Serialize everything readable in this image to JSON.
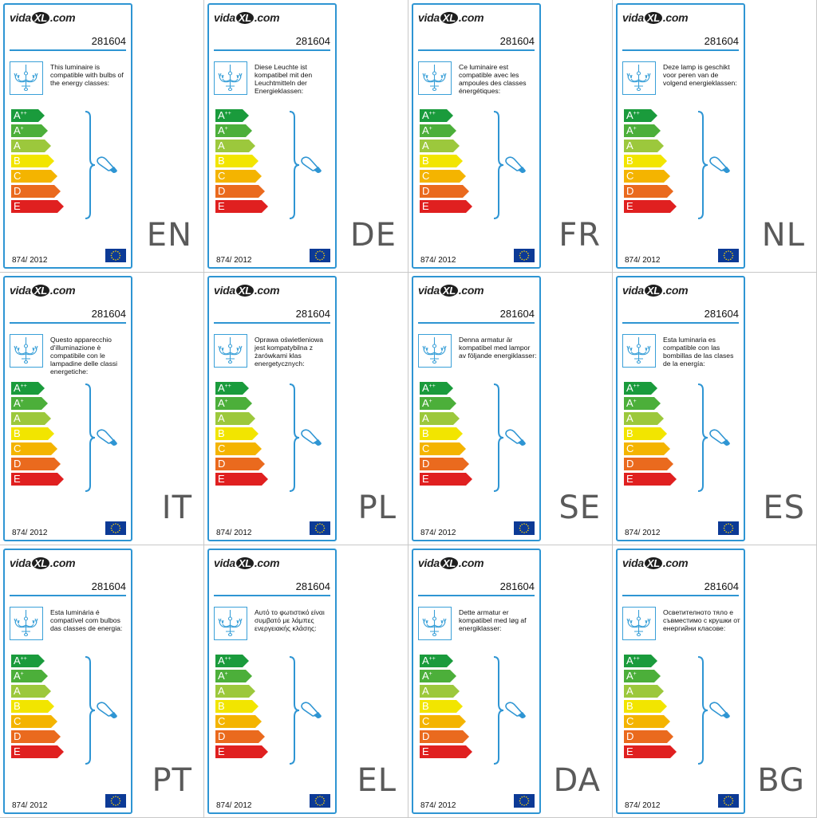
{
  "label_common": {
    "logo_left": "vida",
    "logo_mid": "XL",
    "logo_right": ".com",
    "product_code": "281604",
    "regulation": "874/ 2012",
    "energy_classes": [
      {
        "letter": "A",
        "sup": "++",
        "color": "#1a9b3c"
      },
      {
        "letter": "A",
        "sup": "+",
        "color": "#4caf3a"
      },
      {
        "letter": "A",
        "sup": "",
        "color": "#9cc83c"
      },
      {
        "letter": "B",
        "sup": "",
        "color": "#f2e500"
      },
      {
        "letter": "C",
        "sup": "",
        "color": "#f4b400"
      },
      {
        "letter": "D",
        "sup": "",
        "color": "#ea6a1e"
      },
      {
        "letter": "E",
        "sup": "",
        "color": "#e02020"
      }
    ],
    "accent_color": "#2e95d3",
    "icons": [
      "chandelier-icon",
      "bulb-icon",
      "eu-flag-icon"
    ]
  },
  "labels": [
    {
      "lang": "EN",
      "text": "This luminaire is compatible with bulbs of the energy classes:"
    },
    {
      "lang": "DE",
      "text": "Diese Leuchte ist kompatibel mit den Leuchtmitteln der Energieklassen:"
    },
    {
      "lang": "FR",
      "text": "Ce luminaire est compatible avec les ampoules des classes énergétiques:"
    },
    {
      "lang": "NL",
      "text": "Deze lamp is geschikt voor peren van de volgend energieklassen:"
    },
    {
      "lang": "IT",
      "text": "Questo apparecchio d'illuminazione è compatibile con le lampadine delle classi energetiche:"
    },
    {
      "lang": "PL",
      "text": "Oprawa oświetleniowa jest kompatybilna z żarówkami klas energetycznych:"
    },
    {
      "lang": "SE",
      "text": "Denna armatur är kompatibel med lampor av följande energiklasser:"
    },
    {
      "lang": "ES",
      "text": "Esta luminaria es compatible con las bombillas de las clases de la energía:"
    },
    {
      "lang": "PT",
      "text": "Esta luminária é compatível com bulbos das classes de energia:"
    },
    {
      "lang": "EL",
      "text": "Αυτό το φωτιστικό είναι συμβατό με λάμπες ενεργειακής κλάσης:"
    },
    {
      "lang": "DA",
      "text": "Dette armatur er kompatibel med løg af energiklasser:"
    },
    {
      "lang": "BG",
      "text": "Осветителното тяло е съвместимо с крушки от енергийни класове:"
    }
  ]
}
